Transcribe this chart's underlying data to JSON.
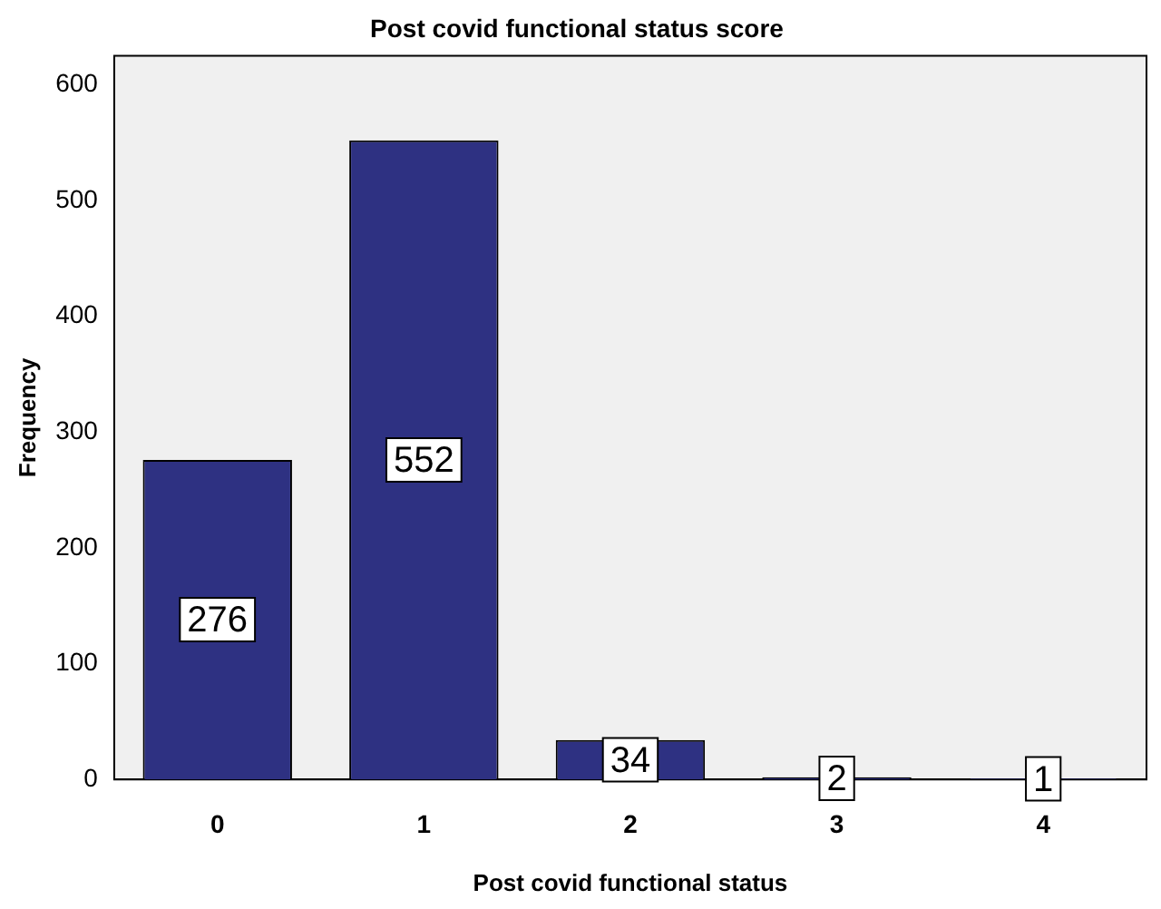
{
  "chart_data": {
    "type": "bar",
    "title": "Post covid functional status score",
    "xlabel": "Post covid functional status",
    "ylabel": "Frequency",
    "categories": [
      "0",
      "1",
      "2",
      "3",
      "4"
    ],
    "values": [
      276,
      552,
      34,
      2,
      1
    ],
    "color": "#2e3182",
    "ylim": [
      0,
      625
    ],
    "yticks": [
      0,
      100,
      200,
      300,
      400,
      500,
      600
    ],
    "grid": false,
    "data_labels": true
  }
}
